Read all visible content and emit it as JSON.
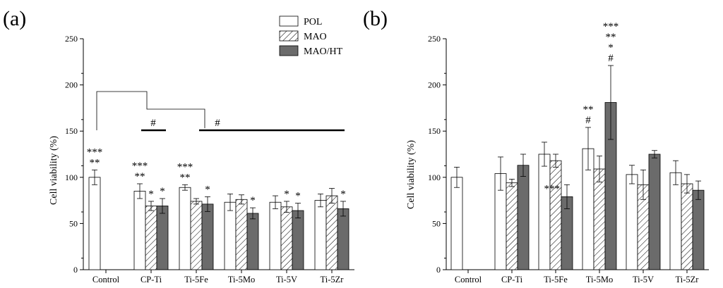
{
  "legend": [
    {
      "label": "POL",
      "fill": "#ffffff",
      "hatch": false
    },
    {
      "label": "MAO",
      "fill": "#ffffff",
      "hatch": true
    },
    {
      "label": "MAO/HT",
      "fill": "#6b6b6b",
      "hatch": false
    }
  ],
  "chart_data": [
    {
      "type": "bar",
      "panel": "(a)",
      "ylabel": "Cell viability (%)",
      "xlabel": "",
      "ylim": [
        0,
        250
      ],
      "yticks": [
        "0",
        "50",
        "100",
        "150",
        "200",
        "250"
      ],
      "categories": [
        "Control",
        "CP-Ti",
        "Ti-5Fe",
        "Ti-5Mo",
        "Ti-5V",
        "Ti-5Zr"
      ],
      "series": [
        {
          "name": "POL",
          "values": [
            100,
            85,
            89,
            73,
            73,
            75
          ],
          "errors": [
            8,
            8,
            3,
            9,
            7,
            7
          ]
        },
        {
          "name": "MAO",
          "values": [
            null,
            69,
            74,
            76,
            68,
            80
          ],
          "errors": [
            null,
            5,
            3,
            5,
            6,
            8
          ]
        },
        {
          "name": "MAO/HT",
          "values": [
            null,
            69,
            71,
            61,
            64,
            66
          ],
          "errors": [
            null,
            8,
            8,
            6,
            8,
            8
          ]
        }
      ],
      "annotations": [
        {
          "cat": 0,
          "series": 0,
          "lines": [
            "***",
            "**"
          ]
        },
        {
          "cat": 1,
          "series": 0,
          "lines": [
            "***",
            "**"
          ]
        },
        {
          "cat": 1,
          "series": 1,
          "lines": [
            "*"
          ]
        },
        {
          "cat": 1,
          "series": 2,
          "lines": [
            "*"
          ]
        },
        {
          "cat": 2,
          "series": 0,
          "lines": [
            "***",
            "**"
          ]
        },
        {
          "cat": 2,
          "series": 2,
          "lines": [
            "*"
          ]
        },
        {
          "cat": 3,
          "series": 2,
          "lines": [
            "*"
          ]
        },
        {
          "cat": 4,
          "series": 1,
          "lines": [
            "*"
          ]
        },
        {
          "cat": 4,
          "series": 2,
          "lines": [
            "*"
          ]
        },
        {
          "cat": 5,
          "series": 2,
          "lines": [
            "*"
          ]
        }
      ],
      "bracket_marks": [
        "#",
        "#"
      ]
    },
    {
      "type": "bar",
      "panel": "(b)",
      "ylabel": "Cell viability (%)",
      "xlabel": "",
      "ylim": [
        0,
        250
      ],
      "yticks": [
        "0",
        "50",
        "100",
        "150",
        "200",
        "250"
      ],
      "categories": [
        "Control",
        "CP-Ti",
        "Ti-5Fe",
        "Ti-5Mo",
        "Ti-5V",
        "Ti-5Zr"
      ],
      "series": [
        {
          "name": "POL",
          "values": [
            100,
            104,
            125,
            131,
            103,
            105
          ],
          "errors": [
            11,
            18,
            13,
            23,
            10,
            13
          ]
        },
        {
          "name": "MAO",
          "values": [
            null,
            94,
            118,
            109,
            92,
            93
          ],
          "errors": [
            null,
            4,
            7,
            14,
            16,
            10
          ]
        },
        {
          "name": "MAO/HT",
          "values": [
            null,
            113,
            79,
            181,
            125,
            86
          ],
          "errors": [
            null,
            12,
            13,
            40,
            4,
            10
          ]
        }
      ],
      "annotations": [
        {
          "cat": 2,
          "series": 2,
          "lines": [
            "***"
          ],
          "side": "left"
        },
        {
          "cat": 3,
          "series": 0,
          "lines": [
            "**",
            "#"
          ]
        },
        {
          "cat": 3,
          "series": 2,
          "lines": [
            "***",
            "**",
            "*",
            "#"
          ]
        }
      ]
    }
  ]
}
